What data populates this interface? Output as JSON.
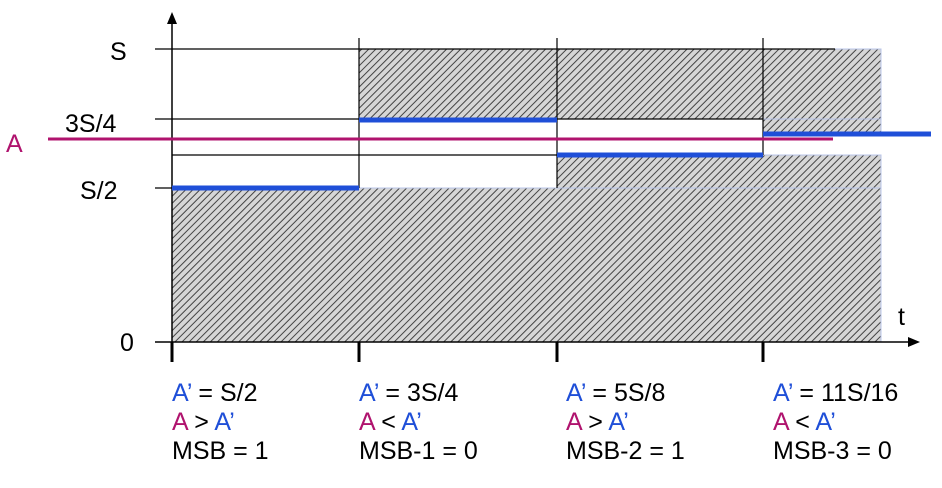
{
  "colors": {
    "estimate": "#1f4fd8",
    "input": "#b0136e",
    "hatch": "#555555",
    "hatch_bg": "#d6d6d6"
  },
  "axis": {
    "y_labels": {
      "s": "S",
      "three_quarter": "3S/4",
      "half": "S/2",
      "zero": "0"
    },
    "input_label": "A",
    "time_label": "t"
  },
  "steps": [
    {
      "estimate_var": "A’",
      "estimate_rest": " = S/2",
      "compare_a": "A",
      "compare_op": " > ",
      "compare_b": "A’",
      "result": "MSB = 1"
    },
    {
      "estimate_var": "A’",
      "estimate_rest": " = 3S/4",
      "compare_a": "A",
      "compare_op": " < ",
      "compare_b": "A’",
      "result": "MSB-1 = 0"
    },
    {
      "estimate_var": "A’",
      "estimate_rest": " = 5S/8",
      "compare_a": "A",
      "compare_op": " > ",
      "compare_b": "A’",
      "result": "MSB-2 = 1"
    },
    {
      "estimate_var": "A’",
      "estimate_rest": " = 11S/16",
      "compare_a": "A",
      "compare_op": " < ",
      "compare_b": "A’",
      "result": "MSB-3 = 0"
    }
  ]
}
